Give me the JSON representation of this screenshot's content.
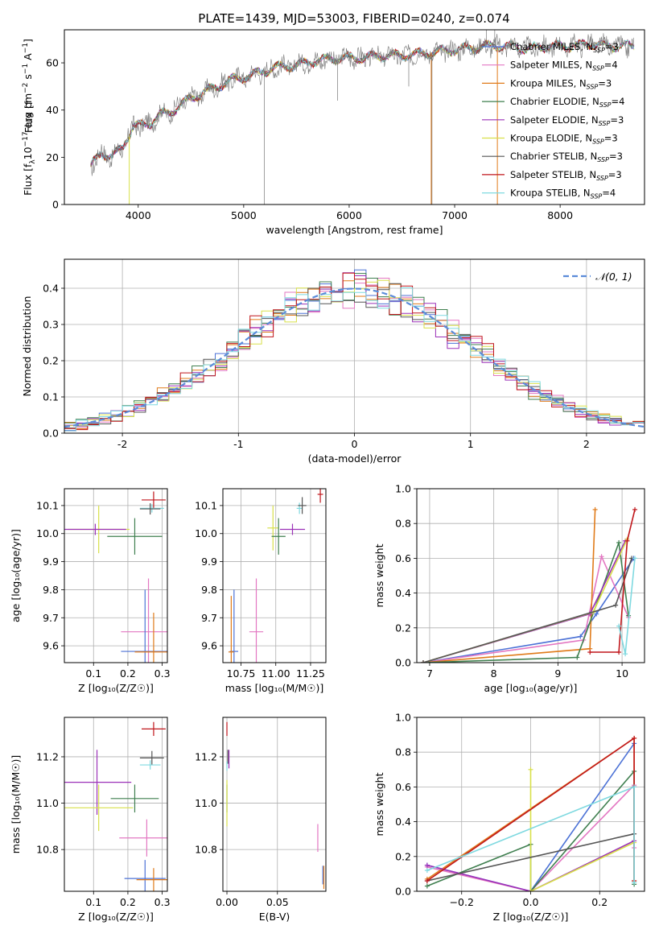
{
  "figure": {
    "title": "PLATE=1439, MJD=53003, FIBERID=0240, z=0.074"
  },
  "colors": {
    "Chabrier MILES": "#4c72d6",
    "Salpeter MILES": "#e377c2",
    "Kroupa MILES": "#e07b1a",
    "Chabrier ELODIE": "#3f7f4f",
    "Salpeter ELODIE": "#9b30b8",
    "Kroupa ELODIE": "#d8e04a",
    "Chabrier STELIB": "#555555",
    "Salpeter STELIB": "#c0161b",
    "Kroupa STELIB": "#7fd9e0"
  },
  "chart_data": [
    {
      "id": "spectrum",
      "type": "line",
      "title": "PLATE=1439, MJD=53003, FIBERID=0240, z=0.074",
      "xlabel": "wavelength [Angstrom, rest frame]",
      "ylabel": "Flux [f",
      "ylabel_parts": [
        "Flux [f",
        "λ",
        "10",
        "−17",
        " erg cm",
        "−2",
        " s",
        "−1",
        " A",
        "−1",
        "]"
      ],
      "xlim": [
        3300,
        8800
      ],
      "ylim": [
        0,
        74
      ],
      "xticks": [
        4000,
        5000,
        6000,
        7000,
        8000
      ],
      "yticks": [
        0,
        20,
        40,
        60
      ],
      "grid": false,
      "legend_position": "top-right",
      "series": [
        {
          "name": "Chabrier MILES",
          "nssp": "3"
        },
        {
          "name": "Salpeter MILES",
          "nssp": "4"
        },
        {
          "name": "Kroupa MILES",
          "nssp": "3"
        },
        {
          "name": "Chabrier ELODIE",
          "nssp": "4"
        },
        {
          "name": "Salpeter ELODIE",
          "nssp": "3"
        },
        {
          "name": "Kroupa ELODIE",
          "nssp": "3"
        },
        {
          "name": "Chabrier STELIB",
          "nssp": "3"
        },
        {
          "name": "Salpeter STELIB",
          "nssp": "3"
        },
        {
          "name": "Kroupa STELIB",
          "nssp": "4"
        }
      ],
      "data_continuum": [
        [
          3550,
          16
        ],
        [
          3650,
          22
        ],
        [
          3750,
          20
        ],
        [
          3850,
          24
        ],
        [
          3950,
          33
        ],
        [
          4100,
          34
        ],
        [
          4200,
          38
        ],
        [
          4300,
          39
        ],
        [
          4500,
          45
        ],
        [
          4700,
          49
        ],
        [
          4900,
          53
        ],
        [
          5100,
          55
        ],
        [
          5300,
          58
        ],
        [
          5500,
          59
        ],
        [
          5700,
          61
        ],
        [
          5900,
          62
        ],
        [
          6100,
          62
        ],
        [
          6300,
          63
        ],
        [
          6500,
          63
        ],
        [
          6700,
          64
        ],
        [
          6900,
          65
        ],
        [
          7100,
          66
        ],
        [
          7300,
          67
        ],
        [
          7500,
          67
        ],
        [
          7700,
          66
        ],
        [
          7900,
          67
        ],
        [
          8100,
          67
        ],
        [
          8300,
          68
        ],
        [
          8500,
          67
        ],
        [
          8700,
          67
        ]
      ]
    },
    {
      "id": "residuals",
      "type": "area",
      "xlabel": "(data-model)/error",
      "ylabel": "Normed distribution",
      "xlim": [
        -2.5,
        2.5
      ],
      "ylim": [
        0,
        0.48
      ],
      "xticks": [
        -2,
        -1,
        0,
        1,
        2
      ],
      "yticks": [
        0.0,
        0.1,
        0.2,
        0.3,
        0.4
      ],
      "grid": true,
      "legend_position": "top-right",
      "legend_label": "𝒩(0, 1)",
      "bins_from": -2.5,
      "bin_width": 0.1,
      "gaussian": {
        "mean": 0,
        "sigma": 1
      }
    },
    {
      "id": "age-vs-Z",
      "type": "scatter",
      "xlabel": "Z [log₁₀(Z/Z☉)]",
      "ylabel": "age  [log₁₀(age/yr)]",
      "xlim": [
        0.015,
        0.315
      ],
      "ylim": [
        9.54,
        10.16
      ],
      "xticks": [
        0.1,
        0.2,
        0.3
      ],
      "xticklabels": [
        "0.1",
        "0.2",
        "0.3"
      ],
      "yticks": [
        9.6,
        9.7,
        9.8,
        9.9,
        10.0,
        10.1
      ],
      "grid": true,
      "points": [
        {
          "s": "Salpeter STELIB",
          "x": 0.275,
          "y": 10.12,
          "xerr": 0.035,
          "yerr": 0.03
        },
        {
          "s": "Kroupa STELIB",
          "x": 0.27,
          "y": 10.09,
          "xerr": 0.035,
          "yerr": 0.015
        },
        {
          "s": "Chabrier STELIB",
          "x": 0.265,
          "y": 10.088,
          "xerr": 0.03,
          "yerr": 0.02
        },
        {
          "s": "Kroupa ELODIE",
          "x": 0.115,
          "y": 10.015,
          "xerr": 0.09,
          "yerr": 0.085
        },
        {
          "s": "Salpeter ELODIE",
          "x": 0.105,
          "y": 10.015,
          "xerr": 0.09,
          "yerr": 0.02
        },
        {
          "s": "Chabrier ELODIE",
          "x": 0.22,
          "y": 9.99,
          "xerr": 0.08,
          "yerr": 0.065
        },
        {
          "s": "Salpeter MILES",
          "x": 0.26,
          "y": 9.65,
          "xerr": 0.08,
          "yerr": 0.19
        },
        {
          "s": "Chabrier MILES",
          "x": 0.25,
          "y": 9.58,
          "xerr": 0.07,
          "yerr": 0.22
        },
        {
          "s": "Kroupa MILES",
          "x": 0.275,
          "y": 9.578,
          "xerr": 0.055,
          "yerr": 0.14
        }
      ]
    },
    {
      "id": "age-vs-mass",
      "type": "scatter",
      "xlabel": "mass [log₁₀(M/M☉)]",
      "xlim": [
        10.62,
        11.36
      ],
      "ylim": [
        9.54,
        10.16
      ],
      "xticks": [
        10.75,
        11.0,
        11.25
      ],
      "xticklabels": [
        "10.75",
        "11.00",
        "11.25"
      ],
      "yticks": [
        9.6,
        9.7,
        9.8,
        9.9,
        10.0,
        10.1
      ],
      "grid": true,
      "points": [
        {
          "s": "Salpeter STELIB",
          "x": 11.32,
          "y": 10.14,
          "xerr": 0.02,
          "yerr": 0.03
        },
        {
          "s": "Kroupa STELIB",
          "x": 11.17,
          "y": 10.09,
          "xerr": 0.02,
          "yerr": 0.02
        },
        {
          "s": "Chabrier STELIB",
          "x": 11.19,
          "y": 10.1,
          "xerr": 0.03,
          "yerr": 0.03
        },
        {
          "s": "Kroupa ELODIE",
          "x": 10.98,
          "y": 10.02,
          "xerr": 0.04,
          "yerr": 0.08
        },
        {
          "s": "Salpeter ELODIE",
          "x": 11.12,
          "y": 10.015,
          "xerr": 0.09,
          "yerr": 0.02
        },
        {
          "s": "Chabrier ELODIE",
          "x": 11.02,
          "y": 9.99,
          "xerr": 0.05,
          "yerr": 0.065
        },
        {
          "s": "Salpeter MILES",
          "x": 10.86,
          "y": 9.65,
          "xerr": 0.05,
          "yerr": 0.19
        },
        {
          "s": "Chabrier MILES",
          "x": 10.7,
          "y": 9.58,
          "xerr": 0.03,
          "yerr": 0.22
        },
        {
          "s": "Kroupa MILES",
          "x": 10.68,
          "y": 9.578,
          "xerr": 0.02,
          "yerr": 0.2
        }
      ]
    },
    {
      "id": "massweight-vs-age",
      "type": "line",
      "xlabel": "age  [log₁₀(age/yr)]",
      "ylabel": "mass weight",
      "xlim": [
        6.8,
        10.35
      ],
      "ylim": [
        0,
        1.0
      ],
      "xticks": [
        7,
        8,
        9,
        10
      ],
      "yticks": [
        0.0,
        0.2,
        0.4,
        0.6,
        0.8,
        1.0
      ],
      "grid": true,
      "series": [
        {
          "s": "Chabrier MILES",
          "points": [
            [
              6.9,
              0.0
            ],
            [
              9.35,
              0.15
            ],
            [
              9.6,
              0.28
            ],
            [
              10.18,
              0.6
            ]
          ]
        },
        {
          "s": "Salpeter MILES",
          "points": [
            [
              6.9,
              0.0
            ],
            [
              9.4,
              0.13
            ],
            [
              9.68,
              0.61
            ],
            [
              10.1,
              0.26
            ]
          ]
        },
        {
          "s": "Kroupa MILES",
          "points": [
            [
              6.9,
              0.0
            ],
            [
              9.5,
              0.08
            ],
            [
              9.58,
              0.88
            ]
          ]
        },
        {
          "s": "Chabrier ELODIE",
          "points": [
            [
              6.9,
              0.0
            ],
            [
              9.3,
              0.03
            ],
            [
              9.95,
              0.69
            ],
            [
              10.1,
              0.27
            ]
          ]
        },
        {
          "s": "Salpeter ELODIE",
          "points": [
            [
              6.9,
              0.0
            ],
            [
              9.5,
              0.28
            ],
            [
              10.05,
              0.7
            ]
          ]
        },
        {
          "s": "Kroupa ELODIE",
          "points": [
            [
              6.9,
              0.0
            ],
            [
              9.55,
              0.29
            ],
            [
              10.08,
              0.71
            ]
          ]
        },
        {
          "s": "Chabrier STELIB",
          "points": [
            [
              6.9,
              0.0
            ],
            [
              9.9,
              0.33
            ],
            [
              10.15,
              0.6
            ]
          ]
        },
        {
          "s": "Salpeter STELIB",
          "points": [
            [
              9.5,
              0.06
            ],
            [
              9.95,
              0.06
            ],
            [
              10.08,
              0.7
            ],
            [
              10.2,
              0.88
            ]
          ]
        },
        {
          "s": "Kroupa STELIB",
          "points": [
            [
              9.95,
              0.21
            ],
            [
              10.05,
              0.05
            ],
            [
              10.2,
              0.6
            ]
          ]
        }
      ]
    },
    {
      "id": "mass-vs-Z",
      "type": "scatter",
      "xlabel": "Z [log₁₀(Z/Z☉)]",
      "ylabel": "mass [log₁₀(M/M☉)]",
      "xlim": [
        0.015,
        0.315
      ],
      "ylim": [
        10.62,
        11.37
      ],
      "xticks": [
        0.1,
        0.2,
        0.3
      ],
      "xticklabels": [
        "0.1",
        "0.2",
        "0.3"
      ],
      "yticks": [
        10.8,
        11.0,
        11.2
      ],
      "yticklabels": [
        "10.8",
        "11.0",
        "11.2"
      ],
      "grid": true,
      "points": [
        {
          "s": "Salpeter STELIB",
          "x": 0.275,
          "y": 11.32,
          "xerr": 0.035,
          "yerr": 0.03
        },
        {
          "s": "Chabrier STELIB",
          "x": 0.27,
          "y": 11.195,
          "xerr": 0.035,
          "yerr": 0.03
        },
        {
          "s": "Kroupa STELIB",
          "x": 0.265,
          "y": 11.165,
          "xerr": 0.03,
          "yerr": 0.02
        },
        {
          "s": "Salpeter ELODIE",
          "x": 0.11,
          "y": 11.09,
          "xerr": 0.1,
          "yerr": 0.14
        },
        {
          "s": "Chabrier ELODIE",
          "x": 0.22,
          "y": 11.02,
          "xerr": 0.07,
          "yerr": 0.06
        },
        {
          "s": "Kroupa ELODIE",
          "x": 0.115,
          "y": 10.98,
          "xerr": 0.1,
          "yerr": 0.1
        },
        {
          "s": "Salpeter MILES",
          "x": 0.255,
          "y": 10.85,
          "xerr": 0.08,
          "yerr": 0.08
        },
        {
          "s": "Chabrier MILES",
          "x": 0.25,
          "y": 10.675,
          "xerr": 0.06,
          "yerr": 0.08
        },
        {
          "s": "Kroupa MILES",
          "x": 0.275,
          "y": 10.67,
          "xerr": 0.05,
          "yerr": 0.05
        }
      ]
    },
    {
      "id": "mass-vs-ebv",
      "type": "scatter",
      "xlabel": "E(B-V)",
      "xlim": [
        -0.004,
        0.098
      ],
      "ylim": [
        10.62,
        11.37
      ],
      "xticks": [
        0.0,
        0.05
      ],
      "xticklabels": [
        "0.00",
        "0.05"
      ],
      "yticks": [
        10.8,
        11.0,
        11.2
      ],
      "yticklabels": [
        "10.8",
        "11.0",
        "11.2"
      ],
      "grid": true,
      "points": [
        {
          "s": "Salpeter STELIB",
          "x": 0.0,
          "y": 11.32,
          "xerr": 0.0,
          "yerr": 0.03
        },
        {
          "s": "Chabrier STELIB",
          "x": 0.001,
          "y": 11.2,
          "xerr": 0.0,
          "yerr": 0.03
        },
        {
          "s": "Salpeter ELODIE",
          "x": 0.002,
          "y": 11.19,
          "xerr": 0.0,
          "yerr": 0.04
        },
        {
          "s": "Kroupa STELIB",
          "x": 0.0,
          "y": 11.16,
          "xerr": 0.0,
          "yerr": 0.02
        },
        {
          "s": "Chabrier ELODIE",
          "x": 0.0,
          "y": 11.02,
          "xerr": 0.0,
          "yerr": 0.06
        },
        {
          "s": "Kroupa ELODIE",
          "x": 0.0,
          "y": 11.0,
          "xerr": 0.0,
          "yerr": 0.1
        },
        {
          "s": "Salpeter MILES",
          "x": 0.09,
          "y": 10.85,
          "xerr": 0.0,
          "yerr": 0.06
        },
        {
          "s": "Chabrier MILES",
          "x": 0.095,
          "y": 10.69,
          "xerr": 0.0,
          "yerr": 0.04
        },
        {
          "s": "Kroupa MILES",
          "x": 0.096,
          "y": 10.68,
          "xerr": 0.0,
          "yerr": 0.05
        }
      ]
    },
    {
      "id": "massweight-vs-Z",
      "type": "line",
      "xlabel": "Z [log₁₀(Z/Z☉)]",
      "ylabel": "mass weight",
      "xlim": [
        -0.33,
        0.33
      ],
      "ylim": [
        0,
        1.0
      ],
      "xticks": [
        -0.2,
        0.0,
        0.2
      ],
      "xticklabels": [
        "−0.2",
        "0.0",
        "0.2"
      ],
      "yticks": [
        0.0,
        0.2,
        0.4,
        0.6,
        0.8,
        1.0
      ],
      "grid": true,
      "series": [
        {
          "s": "Chabrier MILES",
          "points": [
            [
              -0.3,
              0.15
            ],
            [
              0.0,
              0.0
            ],
            [
              0.3,
              0.85
            ]
          ]
        },
        {
          "s": "Salpeter MILES",
          "points": [
            [
              -0.3,
              0.14
            ],
            [
              0.0,
              0.0
            ],
            [
              0.3,
              0.61
            ],
            [
              0.3,
              0.25
            ]
          ]
        },
        {
          "s": "Kroupa MILES",
          "points": [
            [
              -0.3,
              0.07
            ],
            [
              0.3,
              0.88
            ],
            [
              0.3,
              0.06
            ]
          ]
        },
        {
          "s": "Chabrier ELODIE",
          "points": [
            [
              -0.3,
              0.03
            ],
            [
              0.0,
              0.27
            ],
            [
              0.0,
              0.0
            ],
            [
              0.3,
              0.69
            ],
            [
              0.3,
              0.04
            ]
          ]
        },
        {
          "s": "Salpeter ELODIE",
          "points": [
            [
              -0.3,
              0.15
            ],
            [
              0.0,
              0.0
            ],
            [
              0.3,
              0.29
            ]
          ]
        },
        {
          "s": "Kroupa ELODIE",
          "points": [
            [
              0.0,
              0.7
            ],
            [
              0.0,
              0.0
            ],
            [
              0.3,
              0.28
            ]
          ]
        },
        {
          "s": "Chabrier STELIB",
          "points": [
            [
              -0.3,
              0.06
            ],
            [
              0.3,
              0.33
            ],
            [
              0.3,
              0.6
            ]
          ]
        },
        {
          "s": "Salpeter STELIB",
          "points": [
            [
              -0.3,
              0.06
            ],
            [
              0.3,
              0.88
            ],
            [
              0.3,
              0.06
            ]
          ]
        },
        {
          "s": "Kroupa STELIB",
          "points": [
            [
              -0.3,
              0.12
            ],
            [
              0.3,
              0.6
            ],
            [
              0.3,
              0.05
            ]
          ]
        }
      ]
    }
  ]
}
